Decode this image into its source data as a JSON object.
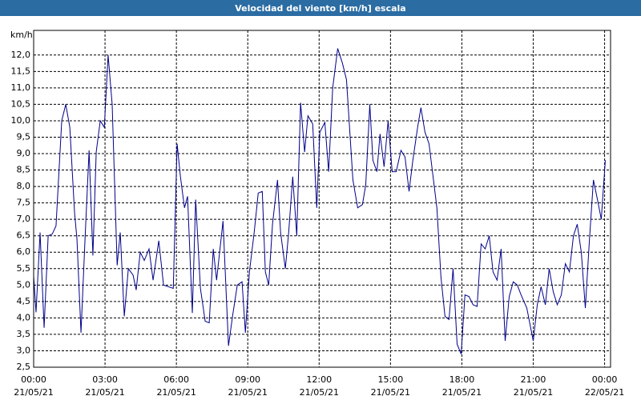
{
  "chart_data": {
    "type": "line",
    "title": "Velocidad del viento [km/h] escala",
    "y_unit": "km/h",
    "x": [
      0,
      0.1,
      0.27,
      0.44,
      0.61,
      0.78,
      0.94,
      1.18,
      1.35,
      1.52,
      1.72,
      1.82,
      1.99,
      2.16,
      2.33,
      2.49,
      2.63,
      2.8,
      2.97,
      3.13,
      3.3,
      3.51,
      3.64,
      3.81,
      3.98,
      4.18,
      4.31,
      4.48,
      4.65,
      4.85,
      5.02,
      5.26,
      5.46,
      5.87,
      6.03,
      6.17,
      6.34,
      6.47,
      6.67,
      6.81,
      7.01,
      7.21,
      7.38,
      7.55,
      7.69,
      7.96,
      8.19,
      8.36,
      8.56,
      8.76,
      8.9,
      9.07,
      9.27,
      9.44,
      9.61,
      9.74,
      9.88,
      10.04,
      10.25,
      10.38,
      10.58,
      10.72,
      10.89,
      11.06,
      11.22,
      11.39,
      11.53,
      11.73,
      11.9,
      12.03,
      12.24,
      12.4,
      12.57,
      12.78,
      12.98,
      13.15,
      13.42,
      13.62,
      13.82,
      13.96,
      14.13,
      14.26,
      14.43,
      14.56,
      14.73,
      14.9,
      15.07,
      15.24,
      15.44,
      15.61,
      15.78,
      15.94,
      16.15,
      16.28,
      16.45,
      16.62,
      16.95,
      17.12,
      17.29,
      17.46,
      17.63,
      17.8,
      17.97,
      18.13,
      18.3,
      18.47,
      18.64,
      18.81,
      18.98,
      19.15,
      19.31,
      19.48,
      19.65,
      19.82,
      19.99,
      20.16,
      20.33,
      20.49,
      20.73,
      21.0,
      21.17,
      21.33,
      21.51,
      21.67,
      21.84,
      22.01,
      22.18,
      22.35,
      22.52,
      22.69,
      22.85,
      23.02,
      23.19,
      23.36,
      23.53,
      23.7,
      23.86,
      24.03
    ],
    "series": [
      {
        "name": "Velocidad del viento",
        "color": "#00008b",
        "values": [
          5.27,
          4.17,
          6.6,
          3.7,
          6.5,
          6.55,
          6.8,
          10.0,
          10.5,
          9.8,
          7.2,
          6.4,
          3.55,
          6.4,
          9.1,
          5.9,
          9.05,
          10.0,
          9.8,
          12.0,
          10.5,
          5.6,
          6.6,
          4.05,
          5.5,
          5.3,
          4.85,
          6.0,
          5.75,
          6.1,
          5.15,
          6.35,
          5.0,
          4.9,
          9.3,
          8.3,
          7.35,
          7.7,
          4.15,
          7.6,
          4.9,
          3.9,
          3.85,
          6.1,
          5.15,
          6.95,
          3.15,
          4.05,
          5.0,
          5.1,
          3.55,
          5.4,
          6.6,
          7.8,
          7.85,
          5.4,
          5.0,
          6.85,
          8.2,
          6.6,
          5.5,
          6.6,
          8.3,
          6.5,
          10.55,
          9.05,
          10.15,
          9.9,
          7.35,
          9.65,
          9.95,
          8.45,
          11.0,
          12.2,
          11.75,
          11.25,
          8.2,
          7.35,
          7.45,
          8.05,
          10.5,
          8.8,
          8.45,
          9.6,
          8.6,
          10.0,
          8.45,
          8.45,
          9.1,
          8.9,
          7.85,
          8.8,
          9.85,
          10.4,
          9.65,
          9.3,
          7.35,
          5.25,
          4.05,
          3.95,
          5.5,
          3.2,
          2.9,
          4.7,
          4.65,
          4.4,
          4.35,
          6.25,
          6.1,
          6.5,
          5.4,
          5.15,
          6.1,
          3.3,
          4.65,
          5.1,
          5.0,
          4.7,
          4.3,
          3.3,
          4.4,
          4.95,
          4.4,
          5.5,
          4.8,
          4.4,
          4.7,
          5.65,
          5.4,
          6.5,
          6.85,
          6.0,
          4.3,
          6.35,
          8.2,
          7.6,
          7.0,
          8.8
        ]
      }
    ],
    "xlim": [
      0,
      24.25
    ],
    "ylim": [
      2.5,
      12.75
    ],
    "xticks": [
      {
        "value": 0,
        "label": "00:00"
      },
      {
        "value": 3,
        "label": "03:00"
      },
      {
        "value": 6,
        "label": "06:00"
      },
      {
        "value": 9,
        "label": "09:00"
      },
      {
        "value": 12,
        "label": "12:00"
      },
      {
        "value": 15,
        "label": "15:00"
      },
      {
        "value": 18,
        "label": "18:00"
      },
      {
        "value": 21,
        "label": "21:00"
      },
      {
        "value": 24,
        "label": "00:00"
      }
    ],
    "xtick_dates": [
      "21/05/21",
      "21/05/21",
      "21/05/21",
      "21/05/21",
      "21/05/21",
      "21/05/21",
      "21/05/21",
      "21/05/21",
      "22/05/21"
    ],
    "yticks": [
      {
        "value": 2.5,
        "label": "2,5"
      },
      {
        "value": 3,
        "label": "3,0"
      },
      {
        "value": 3.5,
        "label": "3,5"
      },
      {
        "value": 4,
        "label": "4,0"
      },
      {
        "value": 4.5,
        "label": "4,5"
      },
      {
        "value": 5,
        "label": "5,0"
      },
      {
        "value": 5.5,
        "label": "5,5"
      },
      {
        "value": 6,
        "label": "6,0"
      },
      {
        "value": 6.5,
        "label": "6,5"
      },
      {
        "value": 7,
        "label": "7,0"
      },
      {
        "value": 7.5,
        "label": "7,5"
      },
      {
        "value": 8,
        "label": "8,0"
      },
      {
        "value": 8.5,
        "label": "8,5"
      },
      {
        "value": 9,
        "label": "9,0"
      },
      {
        "value": 9.5,
        "label": "9,5"
      },
      {
        "value": 10,
        "label": "10,0"
      },
      {
        "value": 10.5,
        "label": "10,5"
      },
      {
        "value": 11,
        "label": "11,0"
      },
      {
        "value": 11.5,
        "label": "11,5"
      },
      {
        "value": 12,
        "label": "12,0"
      }
    ],
    "grid": true
  }
}
